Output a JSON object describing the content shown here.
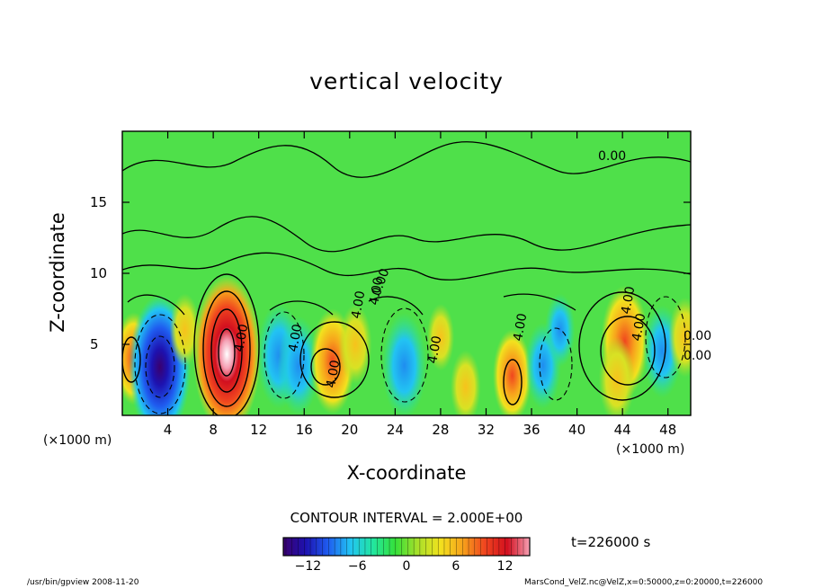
{
  "chart_data": {
    "type": "heatmap",
    "title": "vertical velocity",
    "xlabel": "X-coordinate",
    "ylabel": "Z-coordinate",
    "x_unit_label": "(×1000 m)",
    "xlim": [
      0,
      50
    ],
    "ylim": [
      0,
      20
    ],
    "x_ticks": [
      "4",
      "8",
      "12",
      "16",
      "20",
      "24",
      "28",
      "32",
      "36",
      "40",
      "44",
      "48"
    ],
    "y_ticks": [
      "5",
      "10",
      "15"
    ],
    "contour_interval_text": "CONTOUR INTERVAL = 2.000E+00",
    "time_text": "t=226000 s",
    "colorbar": {
      "range": [
        -15,
        15
      ],
      "ticks": [
        "−12",
        "−6",
        "0",
        "6",
        "12"
      ],
      "stops": [
        "#3a006e",
        "#1d12b0",
        "#1f5df0",
        "#22c4f2",
        "#22e6a0",
        "#35e03a",
        "#a8e02a",
        "#f2e21e",
        "#f7a31c",
        "#f0451f",
        "#d20f1f",
        "#f5a0b4"
      ]
    },
    "contour_labels": [
      "0.00",
      "0.00",
      "4.00",
      "4.00",
      "4.00",
      "4.00",
      "4.00",
      "4.00",
      "4.00",
      "4.00",
      "4.00",
      "0.00",
      "0.00"
    ],
    "cells": [
      {
        "x": 1,
        "z": 4,
        "w": 6
      },
      {
        "x": 3.3,
        "z": 3.4,
        "w": -14
      },
      {
        "x": 5.5,
        "z": 6,
        "w": 3
      },
      {
        "x": 9.2,
        "z": 4.3,
        "w": 16
      },
      {
        "x": 13.8,
        "z": 4.2,
        "w": -8
      },
      {
        "x": 15.5,
        "z": 3.5,
        "w": -7
      },
      {
        "x": 18.5,
        "z": 3.8,
        "w": 8
      },
      {
        "x": 20.5,
        "z": 5,
        "w": 4
      },
      {
        "x": 24.8,
        "z": 3.5,
        "w": -8
      },
      {
        "x": 28,
        "z": 5.5,
        "w": 2
      },
      {
        "x": 30.2,
        "z": 2,
        "w": 3
      },
      {
        "x": 34.3,
        "z": 2.8,
        "w": 6
      },
      {
        "x": 37,
        "z": 3.5,
        "w": -5
      },
      {
        "x": 38.5,
        "z": 6,
        "w": -3
      },
      {
        "x": 44.2,
        "z": 5.2,
        "w": 9
      },
      {
        "x": 43.5,
        "z": 2.5,
        "w": 5
      },
      {
        "x": 47.5,
        "z": 4.5,
        "w": -6
      },
      {
        "x": 49.5,
        "z": 5.5,
        "w": 4
      }
    ]
  },
  "footer": {
    "left": "/usr/bin/gpview  2008-11-20",
    "right": "MarsCond_VelZ.nc@VelZ,x=0:50000,z=0:20000,t=226000"
  }
}
